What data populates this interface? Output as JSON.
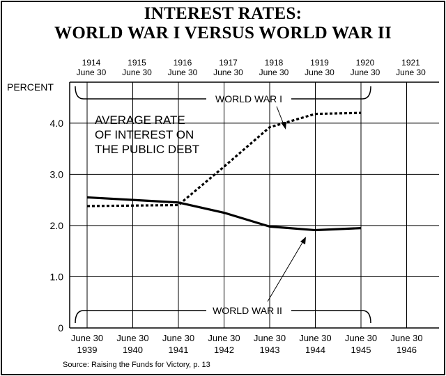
{
  "chart_data": {
    "type": "line",
    "title_lines": [
      "INTEREST RATES:",
      "WORLD WAR I VERSUS WORLD WAR II"
    ],
    "ylabel": "PERCENT",
    "ylim": [
      0,
      4.8
    ],
    "yticks": [
      "0",
      "1.0",
      "2.0",
      "3.0",
      "4.0"
    ],
    "grid": true,
    "top_axis_ticks": [
      {
        "year": "1914",
        "date": "June 30"
      },
      {
        "year": "1915",
        "date": "June 30"
      },
      {
        "year": "1916",
        "date": "June 30"
      },
      {
        "year": "1917",
        "date": "June 30"
      },
      {
        "year": "1918",
        "date": "June 30"
      },
      {
        "year": "1919",
        "date": "June 30"
      },
      {
        "year": "1920",
        "date": "June 30"
      },
      {
        "year": "1921",
        "date": "June 30"
      }
    ],
    "bottom_axis_ticks": [
      {
        "date": "June 30",
        "year": "1939"
      },
      {
        "date": "June 30",
        "year": "1940"
      },
      {
        "date": "June 30",
        "year": "1941"
      },
      {
        "date": "June 30",
        "year": "1942"
      },
      {
        "date": "June 30",
        "year": "1943"
      },
      {
        "date": "June 30",
        "year": "1944"
      },
      {
        "date": "June 30",
        "year": "1945"
      },
      {
        "date": "June 30",
        "year": "1946"
      }
    ],
    "series": [
      {
        "name": "WORLD WAR I",
        "style": "dotted",
        "x": [
          "1914",
          "1915",
          "1916",
          "1917",
          "1918",
          "1919",
          "1920"
        ],
        "values": [
          2.38,
          2.39,
          2.4,
          3.15,
          3.92,
          4.18,
          4.2
        ]
      },
      {
        "name": "WORLD WAR II",
        "style": "solid",
        "x": [
          "1939",
          "1940",
          "1941",
          "1942",
          "1943",
          "1944",
          "1945"
        ],
        "values": [
          2.55,
          2.5,
          2.45,
          2.25,
          1.98,
          1.91,
          1.95
        ]
      }
    ],
    "annotation": [
      "AVERAGE RATE",
      "OF INTEREST ON",
      "THE PUBLIC DEBT"
    ],
    "source": "Source: Raising the Funds for Victory, p. 13"
  }
}
